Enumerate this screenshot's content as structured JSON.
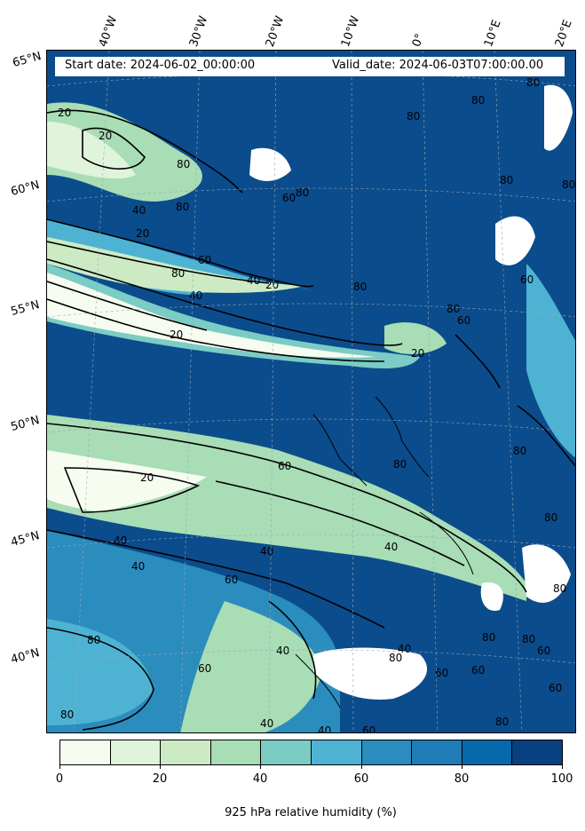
{
  "header": {
    "start_date": "Start date: 2024-06-02_00:00:00",
    "valid_date": "Valid_date: 2024-06-03T07:00:00.00"
  },
  "longitude_labels": [
    "40°W",
    "30°W",
    "20°W",
    "10°W",
    "0°",
    "10°E",
    "20°E"
  ],
  "latitude_labels": [
    "65°N",
    "60°N",
    "55°N",
    "50°N",
    "45°N",
    "40°N"
  ],
  "contour_labels": [
    "20",
    "20",
    "40",
    "80",
    "80",
    "80",
    "60",
    "80",
    "80",
    "80",
    "80",
    "80",
    "40",
    "20",
    "40",
    "20",
    "80",
    "60",
    "20",
    "20",
    "80",
    "60",
    "80",
    "60",
    "80",
    "80",
    "60",
    "40",
    "80",
    "20",
    "60",
    "40",
    "40",
    "40",
    "60",
    "40",
    "80",
    "80",
    "80",
    "60",
    "60",
    "40",
    "40",
    "60",
    "80",
    "40",
    "60",
    "80",
    "60",
    "80",
    "80"
  ],
  "colorbar": {
    "colors": [
      "#f7fcf0",
      "#e0f3db",
      "#ccebc5",
      "#a8ddb5",
      "#7bccc4",
      "#4eb3d3",
      "#2b8cbe",
      "#0868ac",
      "#0868ac",
      "#084081"
    ],
    "tick_labels": [
      "0",
      "20",
      "40",
      "60",
      "80",
      "100"
    ],
    "label": "925 hPa relative humidity (%)",
    "range": [
      0,
      100
    ]
  }
}
